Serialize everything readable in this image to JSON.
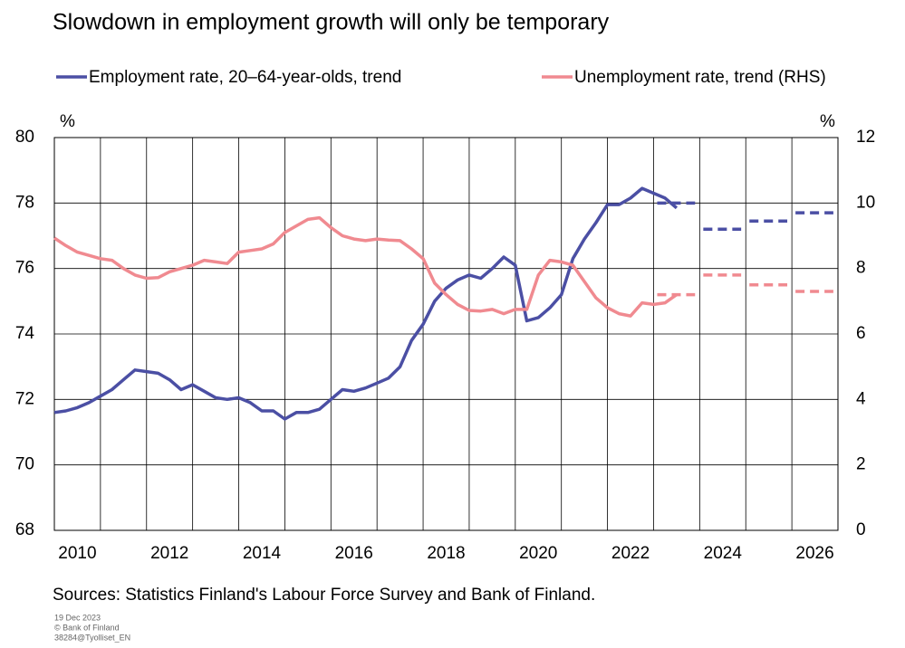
{
  "chart_data": {
    "type": "line",
    "title": "Slowdown in employment growth will only be temporary",
    "y_unit": "%",
    "y2_unit": "%",
    "source": "Sources: Statistics Finland's Labour Force Survey and Bank of Finland.",
    "footnotes": [
      "19 Dec 2023",
      "© Bank of Finland",
      "38284@Tyolliset_EN"
    ],
    "xlim": [
      2010,
      2027
    ],
    "xgrid": [
      2011,
      2012,
      2013,
      2014,
      2015,
      2016,
      2017,
      2018,
      2019,
      2020,
      2021,
      2022,
      2023,
      2024,
      2025,
      2026
    ],
    "xticks": [
      {
        "value": 2010.5,
        "label": "2010"
      },
      {
        "value": 2012.5,
        "label": "2012"
      },
      {
        "value": 2014.5,
        "label": "2014"
      },
      {
        "value": 2016.5,
        "label": "2016"
      },
      {
        "value": 2018.5,
        "label": "2018"
      },
      {
        "value": 2020.5,
        "label": "2020"
      },
      {
        "value": 2022.5,
        "label": "2022"
      },
      {
        "value": 2024.5,
        "label": "2024"
      },
      {
        "value": 2026.5,
        "label": "2026"
      }
    ],
    "ylim": [
      68,
      80
    ],
    "yticks": [
      68,
      70,
      72,
      74,
      76,
      78,
      80
    ],
    "y2lim": [
      0,
      12
    ],
    "y2ticks": [
      0,
      2,
      4,
      6,
      8,
      10,
      12
    ],
    "grid": true,
    "x": [
      2010,
      2010.25,
      2010.5,
      2010.75,
      2011,
      2011.25,
      2011.5,
      2011.75,
      2012,
      2012.25,
      2012.5,
      2012.75,
      2013,
      2013.25,
      2013.5,
      2013.75,
      2014,
      2014.25,
      2014.5,
      2014.75,
      2015,
      2015.25,
      2015.5,
      2015.75,
      2016,
      2016.25,
      2016.5,
      2016.75,
      2017,
      2017.25,
      2017.5,
      2017.75,
      2018,
      2018.25,
      2018.5,
      2018.75,
      2019,
      2019.25,
      2019.5,
      2019.75,
      2020,
      2020.25,
      2020.5,
      2020.75,
      2021,
      2021.25,
      2021.5,
      2021.75,
      2022,
      2022.25,
      2022.5,
      2022.75,
      2023,
      2023.25,
      2023.5
    ],
    "series": [
      {
        "name": "Employment rate, 20–64-year-olds, trend",
        "color": "#4b4fa4",
        "axis": "y",
        "values": [
          71.6,
          71.65,
          71.75,
          71.9,
          72.1,
          72.3,
          72.6,
          72.9,
          72.85,
          72.8,
          72.6,
          72.3,
          72.45,
          72.25,
          72.05,
          72.0,
          72.05,
          71.9,
          71.65,
          71.65,
          71.4,
          71.6,
          71.6,
          71.7,
          72.0,
          72.3,
          72.25,
          72.35,
          72.5,
          72.65,
          73.0,
          73.8,
          74.3,
          75.0,
          75.4,
          75.65,
          75.8,
          75.7,
          76.0,
          76.35,
          76.1,
          74.4,
          74.5,
          74.8,
          75.2,
          76.3,
          76.9,
          77.4,
          77.95,
          77.95,
          78.15,
          78.45,
          78.3,
          78.15,
          77.85
        ],
        "forecast_x": [
          2023,
          2024,
          2025,
          2026
        ],
        "forecast": [
          78.0,
          77.2,
          77.45,
          77.7
        ]
      },
      {
        "name": "Unemployment rate, trend (RHS)",
        "color": "#f08a90",
        "axis": "y2",
        "values": [
          8.93,
          8.7,
          8.5,
          8.4,
          8.3,
          8.25,
          8.0,
          7.8,
          7.7,
          7.72,
          7.9,
          8.0,
          8.1,
          8.25,
          8.2,
          8.15,
          8.5,
          8.55,
          8.6,
          8.75,
          9.1,
          9.3,
          9.5,
          9.55,
          9.25,
          9.0,
          8.9,
          8.85,
          8.9,
          8.87,
          8.85,
          8.6,
          8.3,
          7.55,
          7.2,
          6.9,
          6.72,
          6.7,
          6.75,
          6.62,
          6.75,
          6.75,
          7.8,
          8.25,
          8.2,
          8.1,
          7.6,
          7.1,
          6.8,
          6.62,
          6.55,
          6.95,
          6.9,
          6.95,
          7.2
        ],
        "forecast_x": [
          2023,
          2024,
          2025,
          2026
        ],
        "forecast": [
          7.2,
          7.8,
          7.5,
          7.3
        ]
      }
    ]
  }
}
